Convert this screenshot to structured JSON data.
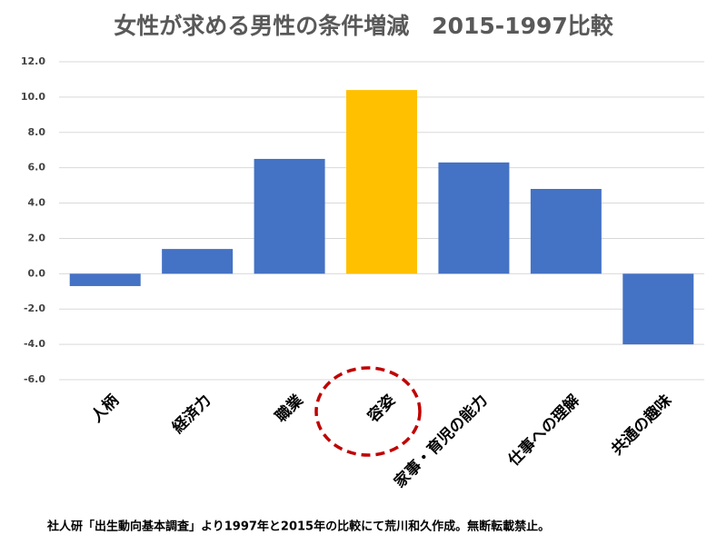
{
  "chart_data": {
    "type": "bar",
    "title": "女性が求める男性の条件増減　2015-1997比較",
    "categories": [
      "人柄",
      "経済力",
      "職業",
      "容姿",
      "家事・育児の能力",
      "仕事への理解",
      "共通の趣味"
    ],
    "values": [
      -0.7,
      1.4,
      6.5,
      10.4,
      6.3,
      4.8,
      -4.0
    ],
    "colors": [
      "#4472c4",
      "#4472c4",
      "#4472c4",
      "#ffc000",
      "#4472c4",
      "#4472c4",
      "#4472c4"
    ],
    "ylim": [
      -6,
      12
    ],
    "yticks": [
      {
        "value": -6,
        "label": "-6.0"
      },
      {
        "value": -4,
        "label": "-4.0"
      },
      {
        "value": -2,
        "label": "-2.0"
      },
      {
        "value": 0,
        "label": "0.0"
      },
      {
        "value": 2,
        "label": "2.0"
      },
      {
        "value": 4,
        "label": "4.0"
      },
      {
        "value": 6,
        "label": "6.0"
      },
      {
        "value": 8,
        "label": "8.0"
      },
      {
        "value": 10,
        "label": "10.0"
      },
      {
        "value": 12,
        "label": "12.0"
      }
    ],
    "grid": true,
    "note": "社人研「出生動向基本調査」より1997年と2015年の比較にて荒川和久作成。無断転載禁止。"
  }
}
